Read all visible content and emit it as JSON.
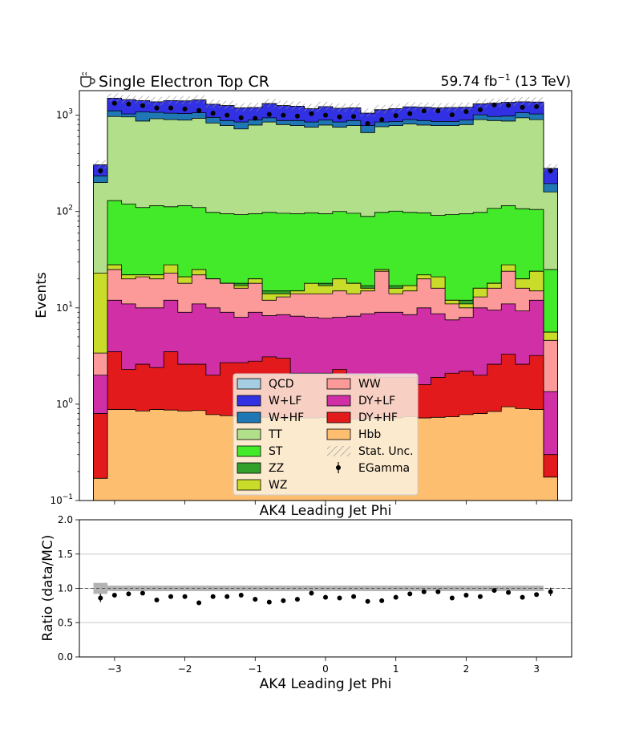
{
  "chart_data": [
    {
      "type": "area",
      "title": "Single Electron Top CR",
      "title_icon": "coffee-icon",
      "title_right": "59.74 fb",
      "title_right_sup": "−1",
      "title_right_tail": " (13 TeV)",
      "ylabel": "Events",
      "xlabel": "AK4 Leading Jet Phi",
      "yscale": "log",
      "ylim": [
        0.1,
        1800
      ],
      "xlim": [
        -3.5,
        3.5
      ],
      "ytick_labels": [
        {
          "v": 0.1,
          "base": "10",
          "exp": "−1"
        },
        {
          "v": 1,
          "base": "10",
          "exp": "0"
        },
        {
          "v": 10,
          "base": "10",
          "exp": "1"
        },
        {
          "v": 100,
          "base": "10",
          "exp": "2"
        },
        {
          "v": 1000,
          "base": "10",
          "exp": "3"
        }
      ],
      "legend_placement": "bottom-center",
      "bin_edges": [
        -3.3,
        -3.1,
        -2.9,
        -2.7,
        -2.5,
        -2.3,
        -2.1,
        -1.9,
        -1.7,
        -1.5,
        -1.3,
        -1.1,
        -0.9,
        -0.7,
        -0.5,
        -0.3,
        -0.1,
        0.1,
        0.3,
        0.5,
        0.7,
        0.9,
        1.1,
        1.3,
        1.5,
        1.7,
        1.9,
        2.1,
        2.3,
        2.5,
        2.7,
        2.9,
        3.1,
        3.3
      ],
      "stack_order": [
        "Hbb",
        "DY+HF",
        "DY+LF",
        "WW",
        "WZ",
        "ZZ",
        "ST",
        "TT",
        "W+HF",
        "W+LF",
        "QCD"
      ],
      "series": [
        {
          "name": "QCD",
          "color": "#a6cee3",
          "cumulative": [
            305,
            1500,
            1450,
            1420,
            1380,
            1420,
            1410,
            1440,
            1300,
            1260,
            1190,
            1200,
            1320,
            1260,
            1240,
            1170,
            1230,
            1180,
            1190,
            1050,
            1140,
            1170,
            1220,
            1210,
            1190,
            1200,
            1210,
            1310,
            1330,
            1360,
            1380,
            1370,
            280
          ]
        },
        {
          "name": "W+LF",
          "color": "#3131e3",
          "cumulative": [
            305,
            1500,
            1450,
            1420,
            1380,
            1420,
            1410,
            1440,
            1300,
            1260,
            1190,
            1200,
            1320,
            1260,
            1240,
            1170,
            1230,
            1180,
            1190,
            1050,
            1140,
            1170,
            1220,
            1210,
            1190,
            1200,
            1210,
            1310,
            1330,
            1360,
            1380,
            1370,
            280
          ]
        },
        {
          "name": "W+HF",
          "color": "#1f78b4",
          "cumulative": [
            235,
            1110,
            1030,
            1080,
            1070,
            1050,
            1040,
            1060,
            950,
            880,
            850,
            890,
            940,
            880,
            880,
            850,
            890,
            850,
            880,
            780,
            850,
            860,
            900,
            880,
            860,
            860,
            890,
            1010,
            970,
            980,
            1060,
            1030,
            195
          ]
        },
        {
          "name": "TT",
          "color": "#b2df8a",
          "cumulative": [
            200,
            970,
            960,
            870,
            920,
            900,
            890,
            930,
            830,
            780,
            720,
            790,
            850,
            800,
            780,
            750,
            790,
            750,
            780,
            660,
            760,
            780,
            810,
            790,
            780,
            780,
            800,
            900,
            880,
            870,
            940,
            900,
            160
          ]
        },
        {
          "name": "ST",
          "color": "#43ea2a",
          "cumulative": [
            23,
            130,
            120,
            110,
            115,
            112,
            115,
            110,
            98,
            95,
            93,
            95,
            98,
            96,
            95,
            97,
            95,
            100,
            96,
            89,
            98,
            101,
            98,
            97,
            91,
            93,
            95,
            98,
            108,
            115,
            107,
            105,
            25
          ]
        },
        {
          "name": "ZZ",
          "color": "#33a02c",
          "cumulative": [
            23,
            28,
            22,
            22,
            22,
            21,
            21,
            21,
            20,
            18,
            18,
            20,
            15,
            15,
            15,
            16,
            18,
            15,
            18,
            17,
            25,
            17,
            17,
            18,
            14,
            12,
            12,
            16,
            18,
            24,
            20,
            24,
            5.6
          ]
        },
        {
          "name": "WZ",
          "color": "#c9dc29",
          "cumulative": [
            23,
            28,
            22,
            22,
            22,
            28,
            21,
            25,
            20,
            18,
            17,
            20,
            14,
            14,
            15,
            18,
            17,
            20,
            18,
            16,
            25,
            16,
            17,
            22,
            21,
            12,
            11,
            16,
            18,
            28,
            20,
            24,
            5.6
          ]
        },
        {
          "name": "WW",
          "color": "#fb9a99",
          "cumulative": [
            3.4,
            25,
            20,
            21,
            20,
            23,
            18,
            22,
            20,
            18,
            16,
            18,
            12,
            13,
            14,
            14,
            14,
            15,
            14,
            15,
            24,
            14,
            15,
            20,
            16,
            11,
            10,
            13,
            16,
            24,
            16,
            15,
            4.6
          ]
        },
        {
          "name": "DY+LF",
          "color": "#d02fa6",
          "cumulative": [
            2.0,
            12,
            11,
            10,
            10,
            12,
            9,
            11,
            10,
            9,
            8,
            9,
            8.3,
            8.5,
            8.2,
            8.0,
            7.8,
            8.0,
            8.2,
            8.7,
            9.0,
            9.0,
            8.5,
            10,
            8.7,
            7.5,
            8.0,
            10,
            9.5,
            11,
            9.3,
            12,
            1.35
          ]
        },
        {
          "name": "DY+HF",
          "color": "#e31a1c",
          "cumulative": [
            0.8,
            3.5,
            2.3,
            2.6,
            2.4,
            3.5,
            2.6,
            2.6,
            2.0,
            2.7,
            2.7,
            2.8,
            3.1,
            3.0,
            2.1,
            2.1,
            2.1,
            2.3,
            2.0,
            2.0,
            1.9,
            1.9,
            1.9,
            1.6,
            1.9,
            2.1,
            2.2,
            2.0,
            2.6,
            3.3,
            2.6,
            3.2,
            0.3
          ]
        },
        {
          "name": "Hbb",
          "color": "#fdbf6f",
          "cumulative": [
            0.17,
            0.88,
            0.88,
            0.85,
            0.88,
            0.87,
            0.85,
            0.86,
            0.78,
            0.76,
            0.75,
            0.74,
            0.73,
            0.72,
            0.72,
            0.72,
            0.73,
            0.7,
            0.7,
            0.71,
            0.7,
            0.72,
            0.74,
            0.72,
            0.73,
            0.74,
            0.78,
            0.8,
            0.84,
            0.94,
            0.9,
            0.88,
            0.175
          ]
        }
      ],
      "data_series": {
        "name": "EGamma",
        "x": [
          -3.2,
          -3.0,
          -2.8,
          -2.6,
          -2.4,
          -2.2,
          -2.0,
          -1.8,
          -1.6,
          -1.4,
          -1.2,
          -1.0,
          -0.8,
          -0.6,
          -0.4,
          -0.2,
          0.0,
          0.2,
          0.4,
          0.6,
          0.8,
          1.0,
          1.2,
          1.4,
          1.6,
          1.8,
          2.0,
          2.2,
          2.4,
          2.6,
          2.8,
          3.0,
          3.2
        ],
        "y": [
          265,
          1330,
          1310,
          1260,
          1190,
          1190,
          1160,
          1120,
          1050,
          1000,
          940,
          930,
          1020,
          1000,
          980,
          1040,
          1000,
          960,
          970,
          820,
          900,
          990,
          1040,
          1110,
          1110,
          1010,
          1090,
          1140,
          1280,
          1270,
          1210,
          1230,
          265
        ]
      },
      "legend": [
        {
          "name": "QCD",
          "kind": "box"
        },
        {
          "name": "W+LF",
          "kind": "box"
        },
        {
          "name": "W+HF",
          "kind": "box"
        },
        {
          "name": "TT",
          "kind": "box"
        },
        {
          "name": "ST",
          "kind": "box"
        },
        {
          "name": "ZZ",
          "kind": "box"
        },
        {
          "name": "WZ",
          "kind": "box"
        },
        {
          "name": "WW",
          "kind": "box"
        },
        {
          "name": "DY+LF",
          "kind": "box"
        },
        {
          "name": "DY+HF",
          "kind": "box"
        },
        {
          "name": "Hbb",
          "kind": "box"
        },
        {
          "name": "Stat. Unc.",
          "kind": "hatch"
        },
        {
          "name": "EGamma",
          "kind": "errorbar"
        }
      ]
    },
    {
      "type": "scatter",
      "ylabel": "Ratio (data/MC)",
      "xlabel": "AK4 Leading Jet Phi",
      "ylim": [
        0.0,
        2.0
      ],
      "xlim": [
        -3.5,
        3.5
      ],
      "yticks": [
        0.0,
        0.5,
        1.0,
        1.5,
        2.0
      ],
      "ytick_labels": [
        "0.0",
        "0.5",
        "1.0",
        "1.5",
        "2.0"
      ],
      "xticks": [
        -3,
        -2,
        -1,
        0,
        1,
        2,
        3
      ],
      "xtick_labels": [
        "−3",
        "−2",
        "−1",
        "0",
        "1",
        "2",
        "3"
      ],
      "grid": true,
      "reference_line": 1.0,
      "band_halfwidth": [
        0.08,
        0.04,
        0.04,
        0.04,
        0.04,
        0.04,
        0.04,
        0.04,
        0.04,
        0.04,
        0.04,
        0.04,
        0.04,
        0.04,
        0.04,
        0.04,
        0.04,
        0.04,
        0.04,
        0.04,
        0.04,
        0.04,
        0.04,
        0.04,
        0.04,
        0.04,
        0.04,
        0.04,
        0.04,
        0.04,
        0.04,
        0.04,
        0.0
      ],
      "x": [
        -3.2,
        -3.0,
        -2.8,
        -2.6,
        -2.4,
        -2.2,
        -2.0,
        -1.8,
        -1.6,
        -1.4,
        -1.2,
        -1.0,
        -0.8,
        -0.6,
        -0.4,
        -0.2,
        0.0,
        0.2,
        0.4,
        0.6,
        0.8,
        1.0,
        1.2,
        1.4,
        1.6,
        1.8,
        2.0,
        2.2,
        2.4,
        2.6,
        2.8,
        3.0,
        3.2
      ],
      "y": [
        0.86,
        0.9,
        0.92,
        0.93,
        0.83,
        0.88,
        0.88,
        0.79,
        0.88,
        0.88,
        0.9,
        0.84,
        0.8,
        0.82,
        0.84,
        0.93,
        0.87,
        0.86,
        0.88,
        0.81,
        0.82,
        0.87,
        0.92,
        0.95,
        0.95,
        0.86,
        0.9,
        0.88,
        0.97,
        0.94,
        0.87,
        0.91,
        0.95
      ],
      "yerr": [
        0.06,
        0.02,
        0.02,
        0.02,
        0.02,
        0.02,
        0.02,
        0.02,
        0.02,
        0.02,
        0.02,
        0.02,
        0.02,
        0.02,
        0.02,
        0.02,
        0.02,
        0.02,
        0.02,
        0.02,
        0.02,
        0.02,
        0.02,
        0.02,
        0.02,
        0.02,
        0.02,
        0.02,
        0.02,
        0.02,
        0.02,
        0.02,
        0.06
      ]
    }
  ]
}
